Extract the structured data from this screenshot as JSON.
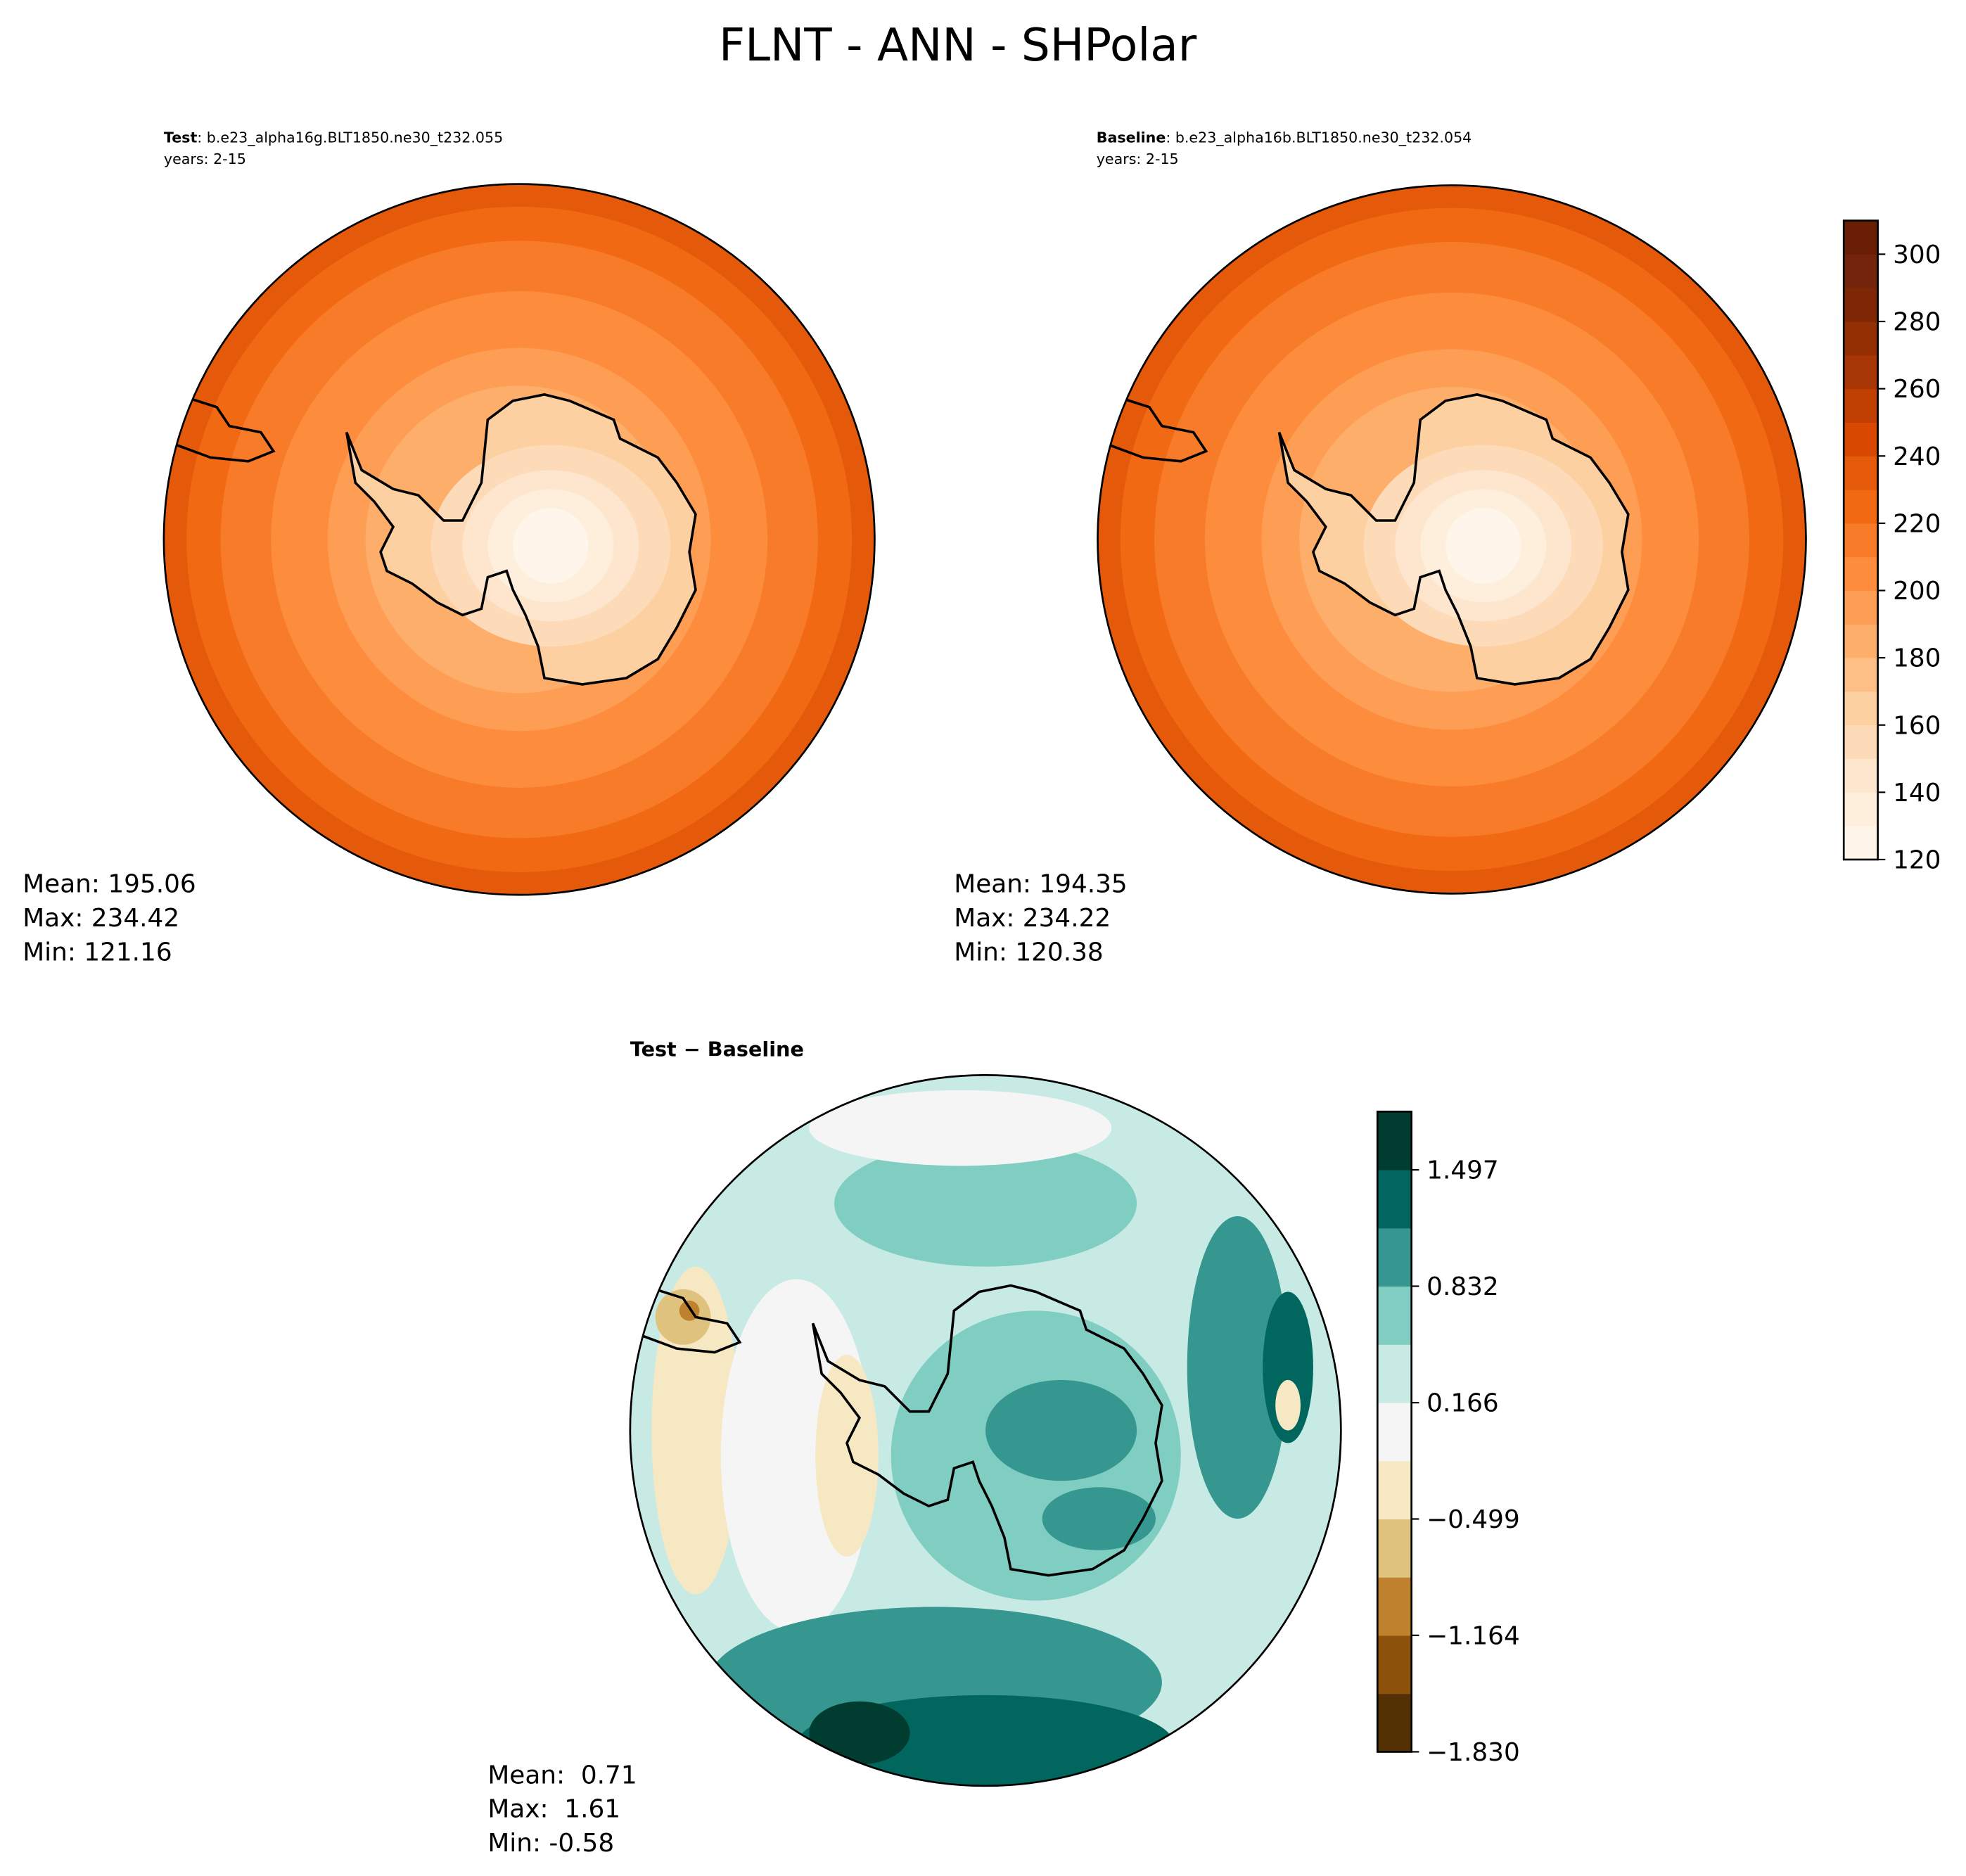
{
  "title": "FLNT - ANN - SHPolar",
  "panels": [
    {
      "label": "Test",
      "case": ": b.e23_alpha16g.BLT1850.ne30_t232.055",
      "years": "years: 2-15",
      "stats": [
        "Mean: 195.06",
        "Max: 234.42",
        "Min: 121.16"
      ]
    },
    {
      "label": "Baseline",
      "case": ": b.e23_alpha16b.BLT1850.ne30_t232.054",
      "years": "years: 2-15",
      "stats": [
        "Mean: 194.35",
        "Max: 234.22",
        "Min: 120.38"
      ]
    },
    {
      "label": "Test − Baseline",
      "stats": [
        "Mean:  0.71",
        "Max:  1.61",
        "Min: -0.58"
      ]
    }
  ],
  "colorbars": [
    {
      "ylim": [
        120,
        310
      ],
      "yticks": [
        120,
        140,
        160,
        180,
        200,
        220,
        240,
        260,
        280,
        300
      ],
      "colors": [
        "#fff5eb",
        "#feeedc",
        "#fee6ce",
        "#fddbb8",
        "#fdd0a2",
        "#fdbf86",
        "#fdae6b",
        "#fd9e54",
        "#fd8d3c",
        "#f77b28",
        "#f16913",
        "#e5590a",
        "#d94801",
        "#c03f02",
        "#a63603",
        "#932f03",
        "#7f2704",
        "#74240a",
        "#6a1e04"
      ]
    },
    {
      "ylim": [
        -1.83,
        1.83
      ],
      "yticks": [
        {
          "value": -1.83,
          "label": "−1.830"
        },
        {
          "value": -1.164,
          "label": "−1.164"
        },
        {
          "value": -0.499,
          "label": "−0.499"
        },
        {
          "value": 0.166,
          "label": "0.166"
        },
        {
          "value": 0.832,
          "label": "0.832"
        },
        {
          "value": 1.497,
          "label": "1.497"
        }
      ],
      "colors": [
        "#543005",
        "#8c510a",
        "#bf812d",
        "#dfc27d",
        "#f6e8c3",
        "#f5f5f5",
        "#c7eae5",
        "#80cdc1",
        "#35978f",
        "#01665e",
        "#003c30"
      ]
    }
  ]
}
